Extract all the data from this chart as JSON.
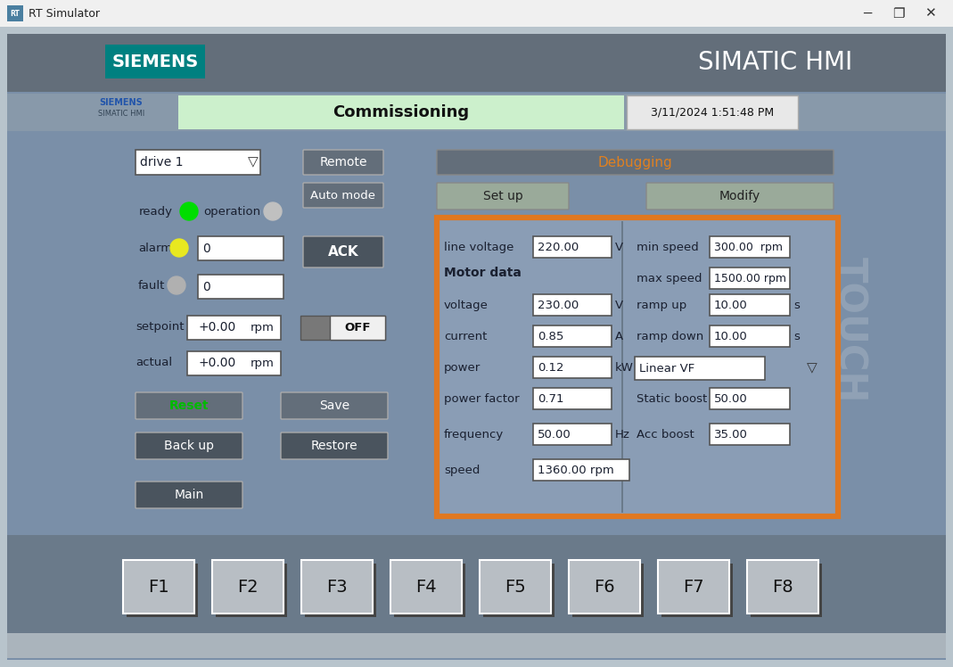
{
  "title_bar": "RT Simulator",
  "simatic_hmi": "SIMATIC HMI",
  "siemens_text": "SIEMENS",
  "commissioning": "Commissioning",
  "datetime": "3/11/2024 1:51:48 PM",
  "debugging": "Debugging",
  "setup": "Set up",
  "modify": "Modify",
  "drive_label": "drive 1",
  "remote_btn": "Remote",
  "auto_mode_btn": "Auto mode",
  "ack_btn": "ACK",
  "ready_label": "ready",
  "operation_label": "operation",
  "alarm_label": "alarm",
  "fault_label": "fault",
  "setpoint_label": "setpoint",
  "actual_label": "actual",
  "setpoint_val": "+0.00",
  "setpoint_unit": "rpm",
  "actual_val": "+0.00",
  "actual_unit": "rpm",
  "alarm_val": "0",
  "fault_val": "0",
  "off_btn": "OFF",
  "reset_btn": "Reset",
  "save_btn": "Save",
  "backup_btn": "Back up",
  "restore_btn": "Restore",
  "main_btn": "Main",
  "line_voltage_label": "line voltage",
  "line_voltage_val": "220.00",
  "line_voltage_unit": "V",
  "motor_data_label": "Motor data",
  "voltage_label": "voltage",
  "voltage_val": "230.00",
  "voltage_unit": "V",
  "current_label": "current",
  "current_val": "0.85",
  "current_unit": "A",
  "power_label": "power",
  "power_val": "0.12",
  "power_unit": "kW",
  "power_factor_label": "power factor",
  "power_factor_val": "0.71",
  "frequency_label": "frequency",
  "frequency_val": "50.00",
  "frequency_unit": "Hz",
  "speed_label": "speed",
  "speed_val": "1360.00 rpm",
  "min_speed_label": "min speed",
  "min_speed_val": "300.00  rpm",
  "max_speed_label": "max speed",
  "max_speed_val": "1500.00 rpm",
  "ramp_up_label": "ramp up",
  "ramp_up_val": "10.00",
  "ramp_up_unit": "s",
  "ramp_down_label": "ramp down",
  "ramp_down_val": "10.00",
  "ramp_down_unit": "s",
  "linear_vf": "Linear VF",
  "static_boost_label": "Static boost",
  "static_boost_val": "50.00",
  "acc_boost_label": "Acc boost",
  "acc_boost_val": "35.00",
  "touch_text": "TOUCH",
  "f_buttons": [
    "F1",
    "F2",
    "F3",
    "F4",
    "F5",
    "F6",
    "F7",
    "F8"
  ],
  "bg_titlebar": "#f0f0f0",
  "bg_main": "#7a8fa8",
  "bg_content": "#8a9db5",
  "bg_bottom": "#7a8fa8",
  "btn_dark": "#636e7a",
  "btn_darker": "#4a545e",
  "btn_light_border": "#9aabb8",
  "orange_border": "#e07820",
  "siemens_box_color": "#008080",
  "commissioning_bg": "#ccf0cc",
  "datetime_bg": "#e8e8e8",
  "debugging_text_color": "#e08020",
  "ready_green": "#00dd00",
  "alarm_yellow": "#e8e820",
  "operation_gray": "#c0c0c0",
  "fault_gray": "#b0b0b0",
  "reset_text_green": "#00bb00",
  "field_bg": "#ffffff",
  "field_border": "#555555",
  "dark_text": "#1a2030",
  "white_text": "#ffffff",
  "touch_color": "#9aaabb"
}
